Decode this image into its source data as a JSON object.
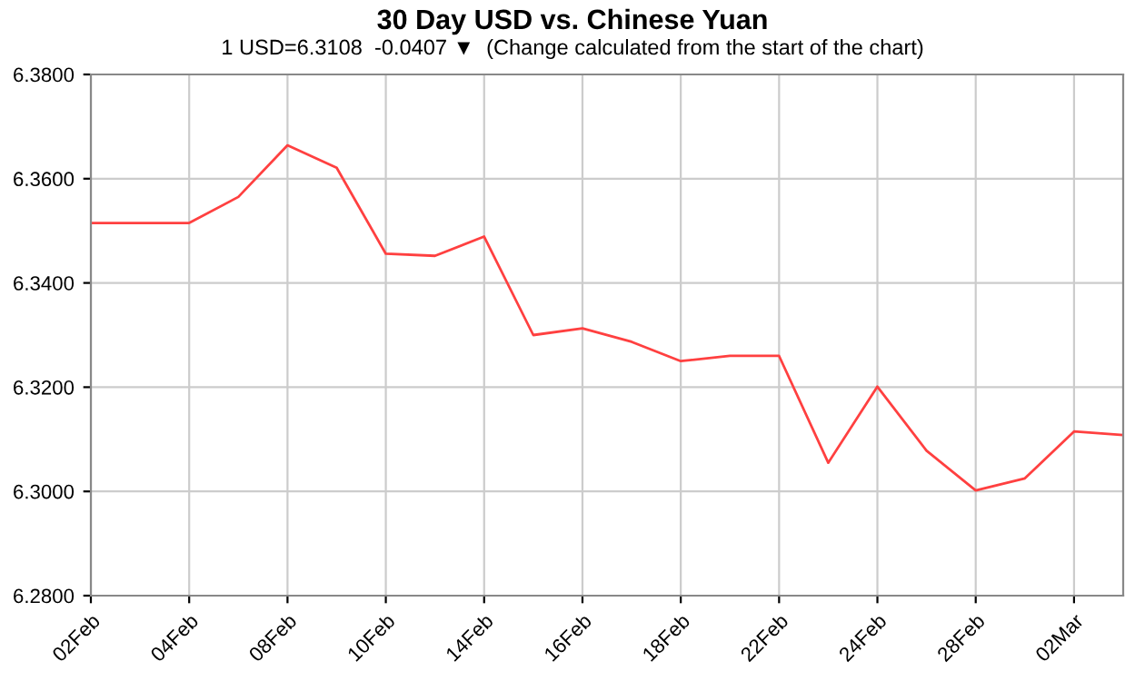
{
  "chart_data": {
    "type": "line",
    "title": "30 Day USD vs. Chinese Yuan",
    "subtitle": "1 USD=6.3108  -0.0407 ▼  (Change calculated from the start of the chart)",
    "categories": [
      "02Feb",
      null,
      "04Feb",
      null,
      "08Feb",
      null,
      "10Feb",
      null,
      "14Feb",
      null,
      "16Feb",
      null,
      "18Feb",
      null,
      "22Feb",
      null,
      "24Feb",
      null,
      "28Feb",
      null,
      "02Mar",
      null
    ],
    "series": [
      {
        "color": "#ff4040",
        "values": [
          6.3515,
          6.3515,
          6.3515,
          6.3565,
          6.3664,
          6.3621,
          6.3456,
          6.3452,
          6.3489,
          6.33,
          6.3313,
          6.3287,
          6.325,
          6.326,
          6.326,
          6.3055,
          6.3201,
          6.3078,
          6.3002,
          6.3025,
          6.3115,
          6.3108
        ]
      }
    ],
    "ylim": [
      6.28,
      6.38
    ],
    "yticks": [
      {
        "value": 6.28,
        "label": "6.2800"
      },
      {
        "value": 6.3,
        "label": "6.3000"
      },
      {
        "value": 6.32,
        "label": "6.3200"
      },
      {
        "value": 6.34,
        "label": "6.3400"
      },
      {
        "value": 6.36,
        "label": "6.3600"
      },
      {
        "value": 6.38,
        "label": "6.3800"
      }
    ],
    "grid": true,
    "marker": "none",
    "line_style": "solid"
  }
}
